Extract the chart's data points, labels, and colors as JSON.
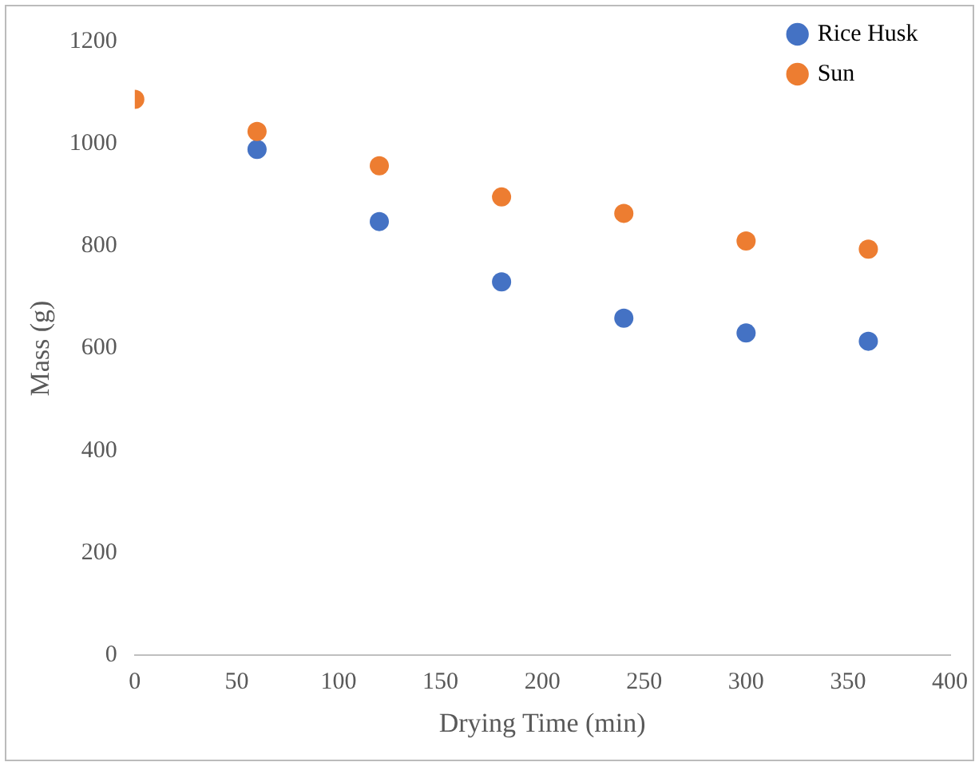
{
  "chart_data": {
    "type": "scatter",
    "xlabel": "Drying Time (min)",
    "ylabel": "Mass (g)",
    "x": [
      0,
      60,
      120,
      180,
      240,
      300,
      360
    ],
    "series": [
      {
        "name": "Rice Husk",
        "color": "#4472c4",
        "values": [
          null,
          989,
          848,
          730,
          659,
          630,
          614
        ]
      },
      {
        "name": "Sun",
        "color": "#ed7d31",
        "values": [
          1087,
          1024,
          957,
          896,
          864,
          810,
          794
        ]
      }
    ],
    "xlim": [
      0,
      400
    ],
    "xticks": [
      0,
      50,
      100,
      150,
      200,
      250,
      300,
      350,
      400
    ],
    "ylim": [
      0,
      1200
    ],
    "yticks": [
      0,
      200,
      400,
      600,
      800,
      1000,
      1200
    ],
    "grid": false,
    "legend": "top right",
    "marker": "circle"
  }
}
